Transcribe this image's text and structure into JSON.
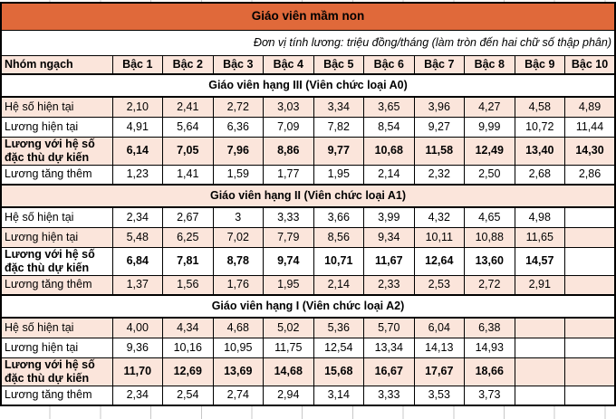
{
  "title": "Giáo viên mầm non",
  "unit_note": "Đơn vị tính lương: triệu đồng/tháng (làm tròn đến hai chữ số thập phân)",
  "columns": {
    "group": "Nhóm ngạch",
    "levels": [
      "Bậc 1",
      "Bậc 2",
      "Bậc 3",
      "Bậc 4",
      "Bậc 5",
      "Bậc 6",
      "Bậc 7",
      "Bậc 8",
      "Bậc 9",
      "Bậc 10"
    ]
  },
  "sections": [
    {
      "title": "Giáo viên hạng III (Viên chức loại A0)",
      "rows": [
        {
          "label": "Hệ số hiện tại",
          "bold": false,
          "values": [
            "2,10",
            "2,41",
            "2,72",
            "3,03",
            "3,34",
            "3,65",
            "3,96",
            "4,27",
            "4,58",
            "4,89"
          ]
        },
        {
          "label": "Lương hiện tại",
          "bold": false,
          "values": [
            "4,91",
            "5,64",
            "6,36",
            "7,09",
            "7,82",
            "8,54",
            "9,27",
            "9,99",
            "10,72",
            "11,44"
          ]
        },
        {
          "label": "Lương với hệ số đặc thù dự kiến",
          "bold": true,
          "values": [
            "6,14",
            "7,05",
            "7,96",
            "8,86",
            "9,77",
            "10,68",
            "11,58",
            "12,49",
            "13,40",
            "14,30"
          ]
        },
        {
          "label": "Lương tăng thêm",
          "bold": false,
          "values": [
            "1,23",
            "1,41",
            "1,59",
            "1,77",
            "1,95",
            "2,14",
            "2,32",
            "2,50",
            "2,68",
            "2,86"
          ]
        }
      ]
    },
    {
      "title": "Giáo viên hạng II (Viên chức loại A1)",
      "rows": [
        {
          "label": "Hệ số hiện tại",
          "bold": false,
          "values": [
            "2,34",
            "2,67",
            "3",
            "3,33",
            "3,66",
            "3,99",
            "4,32",
            "4,65",
            "4,98",
            ""
          ]
        },
        {
          "label": "Lương hiện tại",
          "bold": false,
          "values": [
            "5,48",
            "6,25",
            "7,02",
            "7,79",
            "8,56",
            "9,34",
            "10,11",
            "10,88",
            "11,65",
            ""
          ]
        },
        {
          "label": "Lương với hệ số đặc thù dự kiến",
          "bold": true,
          "values": [
            "6,84",
            "7,81",
            "8,78",
            "9,74",
            "10,71",
            "11,67",
            "12,64",
            "13,60",
            "14,57",
            ""
          ]
        },
        {
          "label": "Lương tăng thêm",
          "bold": false,
          "values": [
            "1,37",
            "1,56",
            "1,76",
            "1,95",
            "2,14",
            "2,33",
            "2,53",
            "2,72",
            "2,91",
            ""
          ]
        }
      ]
    },
    {
      "title": "Giáo viên hạng I (Viên chức loại A2)",
      "rows": [
        {
          "label": "Hệ số hiện tại",
          "bold": false,
          "values": [
            "4,00",
            "4,34",
            "4,68",
            "5,02",
            "5,36",
            "5,70",
            "6,04",
            "6,38",
            "",
            ""
          ]
        },
        {
          "label": "Lương hiện tại",
          "bold": false,
          "values": [
            "9,36",
            "10,16",
            "10,95",
            "11,75",
            "12,54",
            "13,34",
            "14,13",
            "14,93",
            "",
            ""
          ]
        },
        {
          "label": "Lương với hệ số đặc thù dự kiến",
          "bold": true,
          "values": [
            "11,70",
            "12,69",
            "13,69",
            "14,68",
            "15,68",
            "16,67",
            "17,67",
            "18,66",
            "",
            ""
          ]
        },
        {
          "label": "Lương tăng thêm",
          "bold": false,
          "values": [
            "2,34",
            "2,54",
            "2,74",
            "2,94",
            "3,14",
            "3,33",
            "3,53",
            "3,73",
            "",
            ""
          ]
        }
      ]
    }
  ],
  "colors": {
    "header_orange": "#e0693a",
    "band_pink": "#fbe5db",
    "border_black": "#000000",
    "gridline_gray": "#c8c8c8"
  }
}
